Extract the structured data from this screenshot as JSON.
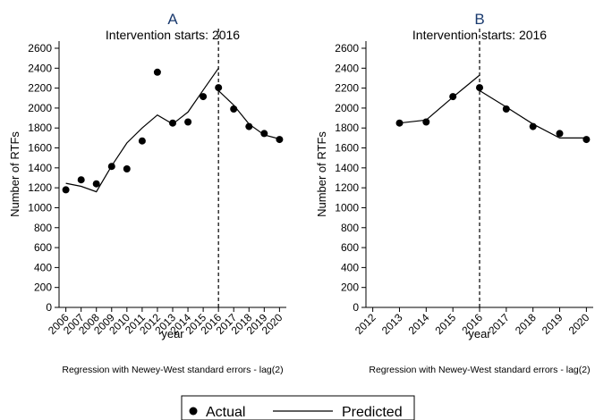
{
  "legend": {
    "actual_label": "Actual",
    "predicted_label": "Predicted"
  },
  "chart_data": [
    {
      "type": "line",
      "panel": "A",
      "title": "A",
      "subtitle": "Intervention starts: 2016",
      "xlabel": "year",
      "ylabel": "Number of RTFs",
      "note": "Regression with Newey-West standard errors - lag(2)",
      "x_ticks": [
        "2006",
        "2007",
        "2008",
        "2009",
        "2010",
        "2011",
        "2012",
        "2013",
        "2014",
        "2015",
        "2016",
        "2017",
        "2018",
        "2019",
        "2020"
      ],
      "y_ticks": [
        0,
        200,
        400,
        600,
        800,
        1000,
        1200,
        1400,
        1600,
        1800,
        2000,
        2200,
        2400,
        2600
      ],
      "xlim": [
        2006,
        2020
      ],
      "ylim": [
        0,
        2600
      ],
      "intervention_year": 2016,
      "grid": false,
      "legend_position": "bottom",
      "series": [
        {
          "name": "Actual",
          "kind": "scatter",
          "x": [
            2006,
            2007,
            2008,
            2009,
            2010,
            2011,
            2012,
            2013,
            2014,
            2015,
            2016,
            2017,
            2018,
            2019,
            2020
          ],
          "values": [
            1180,
            1280,
            1240,
            1415,
            1390,
            1670,
            2360,
            1850,
            1860,
            2115,
            2205,
            1990,
            1815,
            1745,
            1685
          ]
        },
        {
          "name": "Predicted",
          "kind": "line",
          "segments": [
            {
              "x": [
                2006,
                2007,
                2008,
                2009,
                2010,
                2011,
                2012,
                2013,
                2014,
                2015,
                2016
              ],
              "values": [
                1245,
                1215,
                1160,
                1420,
                1650,
                1800,
                1930,
                1840,
                1960,
                2180,
                2400
              ]
            },
            {
              "x": [
                2016,
                2017,
                2018,
                2019,
                2020
              ],
              "values": [
                2175,
                2030,
                1840,
                1730,
                1690
              ]
            }
          ]
        }
      ]
    },
    {
      "type": "line",
      "panel": "B",
      "title": "B",
      "subtitle": "Intervention starts: 2016",
      "xlabel": "year",
      "ylabel": "Number of RTFs",
      "note": "Regression with Newey-West standard errors - lag(2)",
      "x_ticks": [
        "2012",
        "2013",
        "2014",
        "2015",
        "2016",
        "2017",
        "2018",
        "2019",
        "2020"
      ],
      "y_ticks": [
        0,
        200,
        400,
        600,
        800,
        1000,
        1200,
        1400,
        1600,
        1800,
        2000,
        2200,
        2400,
        2600
      ],
      "xlim": [
        2012,
        2020
      ],
      "ylim": [
        0,
        2600
      ],
      "intervention_year": 2016,
      "grid": false,
      "legend_position": "bottom",
      "series": [
        {
          "name": "Actual",
          "kind": "scatter",
          "x": [
            2013,
            2014,
            2015,
            2016,
            2017,
            2018,
            2019,
            2020
          ],
          "values": [
            1850,
            1860,
            2115,
            2205,
            1990,
            1815,
            1745,
            1685
          ]
        },
        {
          "name": "Predicted",
          "kind": "line",
          "segments": [
            {
              "x": [
                2013,
                2014,
                2015,
                2016
              ],
              "values": [
                1850,
                1880,
                2110,
                2330
              ]
            },
            {
              "x": [
                2016,
                2017,
                2018,
                2019,
                2020
              ],
              "values": [
                2175,
                2010,
                1840,
                1700,
                1700
              ]
            }
          ]
        }
      ]
    }
  ]
}
